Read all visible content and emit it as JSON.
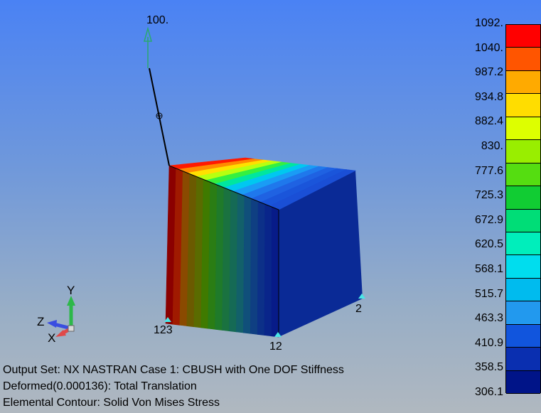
{
  "model": {
    "load_label": "100.",
    "node_labels": {
      "n123": "123",
      "n12": "12",
      "n2": "2"
    }
  },
  "triad": {
    "x": "X",
    "y": "Y",
    "z": "Z"
  },
  "legend": {
    "values": [
      "1092.",
      "1040.",
      "987.2",
      "934.8",
      "882.4",
      "830.",
      "777.6",
      "725.3",
      "672.9",
      "620.5",
      "568.1",
      "515.7",
      "463.3",
      "410.9",
      "358.5",
      "306.1"
    ],
    "colors": [
      "#ff0000",
      "#ff5500",
      "#ffaa00",
      "#ffdd00",
      "#ddff00",
      "#99ee00",
      "#55dd11",
      "#11cc33",
      "#00dd77",
      "#00eebb",
      "#00ddee",
      "#00bbee",
      "#2299ee",
      "#1155dd",
      "#0a2fb0",
      "#001488"
    ]
  },
  "info": {
    "line1": "Output Set: NX NASTRAN Case 1: CBUSH with One DOF Stiffness",
    "line2": "Deformed(0.000136): Total Translation",
    "line3": "Elemental Contour: Solid Von Mises Stress"
  },
  "face_colors": {
    "front": [
      "#8b0000",
      "#a01a00",
      "#8a4a00",
      "#6b5a00",
      "#5a6b00",
      "#3f7a00",
      "#2a7d14",
      "#1f7a2a",
      "#1a7240",
      "#156a55",
      "#12606a",
      "#104f7a",
      "#0f3f82",
      "#0c3088",
      "#09258a",
      "#071b88"
    ],
    "side": "#0a2a96",
    "top_dark": "#1a4fd6"
  }
}
